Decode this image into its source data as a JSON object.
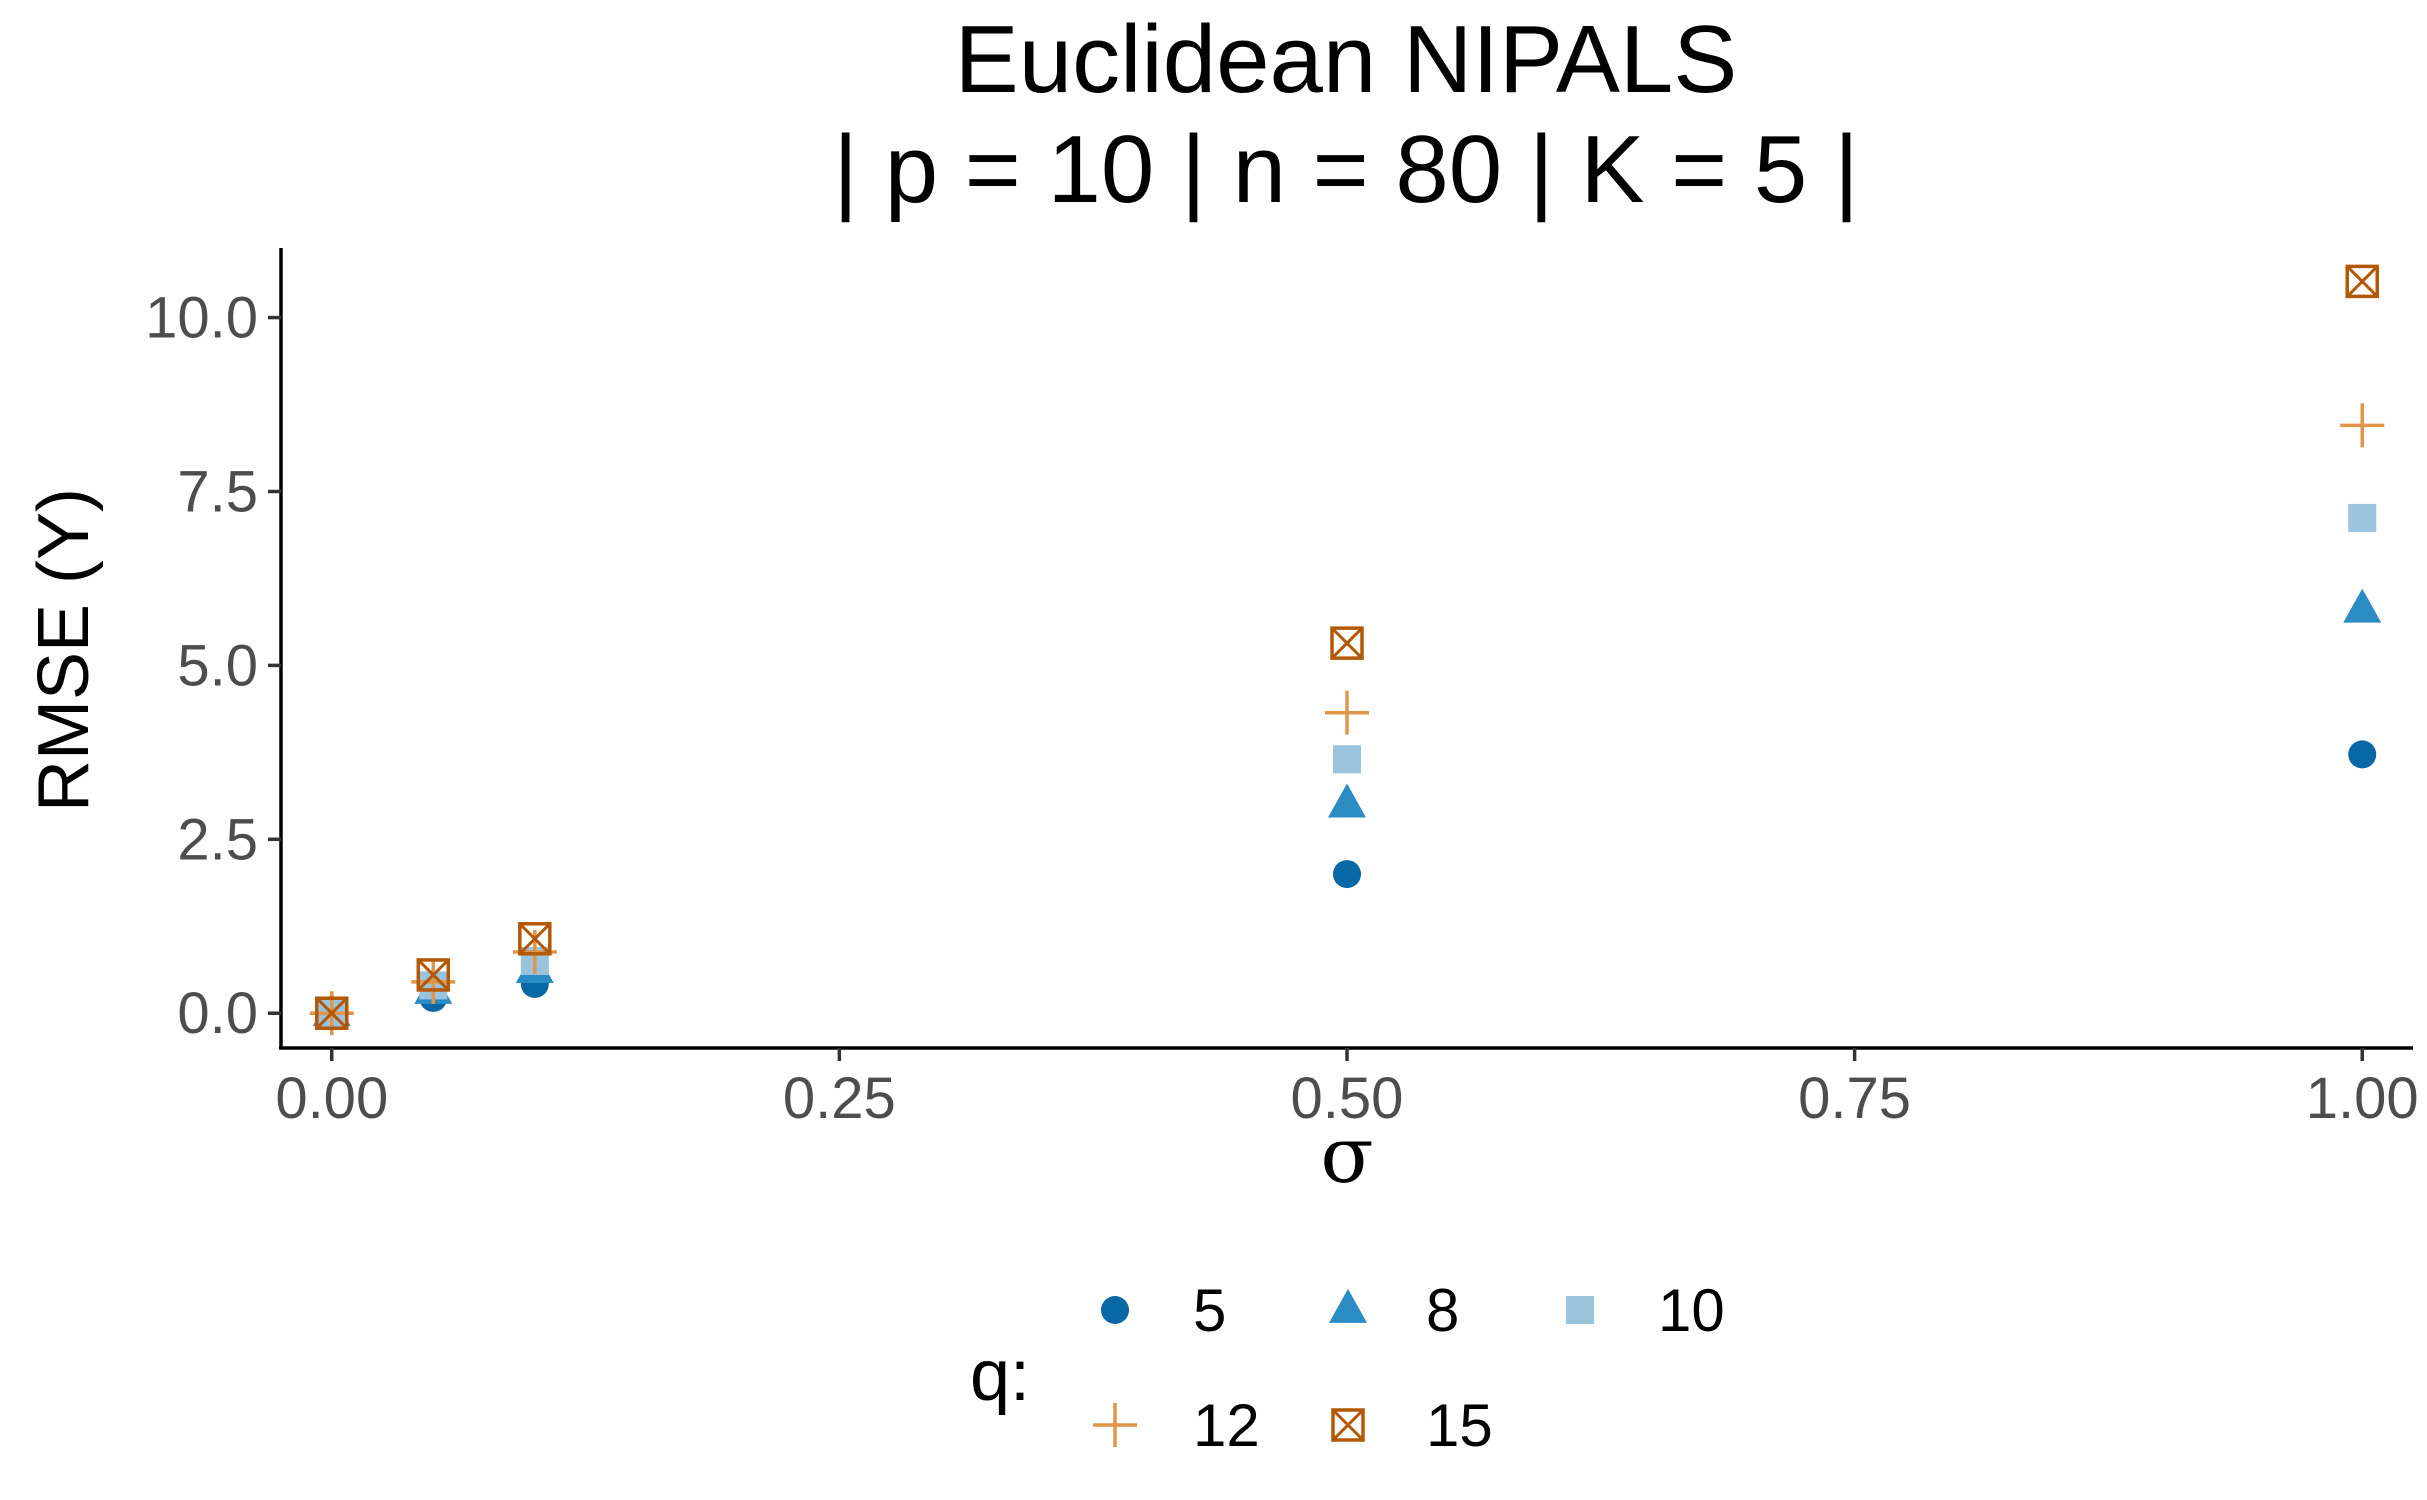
{
  "chart_data": {
    "type": "scatter",
    "title_lines": [
      "Euclidean NIPALS",
      "| p = 10 | n = 80 | K = 5 |"
    ],
    "xlabel": "σ",
    "ylabel": "RMSE (Y)",
    "xlim": [
      -0.025,
      1.025
    ],
    "ylim": [
      -0.5,
      11.0
    ],
    "x_ticks": [
      0.0,
      0.25,
      0.5,
      0.75,
      1.0
    ],
    "x_tick_labels": [
      "0.00",
      "0.25",
      "0.50",
      "0.75",
      "1.00"
    ],
    "y_ticks": [
      0.0,
      2.5,
      5.0,
      7.5,
      10.0
    ],
    "y_tick_labels": [
      "0.0",
      "2.5",
      "5.0",
      "7.5",
      "10.0"
    ],
    "grid": false,
    "legend": {
      "title": "q:",
      "position": "bottom"
    },
    "series": [
      {
        "name": "5",
        "shape": "circle",
        "color": "#0868a6",
        "x": [
          0.0,
          0.05,
          0.1,
          0.5,
          1.0
        ],
        "y": [
          0.0,
          0.22,
          0.42,
          2.0,
          3.72
        ]
      },
      {
        "name": "8",
        "shape": "triangle",
        "color": "#2b8cc4",
        "x": [
          0.0,
          0.05,
          0.1,
          0.5,
          1.0
        ],
        "y": [
          0.0,
          0.32,
          0.62,
          3.0,
          5.8
        ]
      },
      {
        "name": "10",
        "shape": "square",
        "color": "#9ac3de",
        "x": [
          0.0,
          0.05,
          0.1,
          0.5,
          1.0
        ],
        "y": [
          0.0,
          0.4,
          0.75,
          3.65,
          7.12
        ]
      },
      {
        "name": "12",
        "shape": "plus",
        "color": "#e0954a",
        "x": [
          0.0,
          0.05,
          0.1,
          0.5,
          1.0
        ],
        "y": [
          0.0,
          0.45,
          0.88,
          4.32,
          8.45
        ]
      },
      {
        "name": "15",
        "shape": "boxcross",
        "color": "#b35806",
        "x": [
          0.0,
          0.05,
          0.1,
          0.5,
          1.0
        ],
        "y": [
          0.0,
          0.55,
          1.07,
          5.32,
          10.52
        ]
      }
    ]
  }
}
